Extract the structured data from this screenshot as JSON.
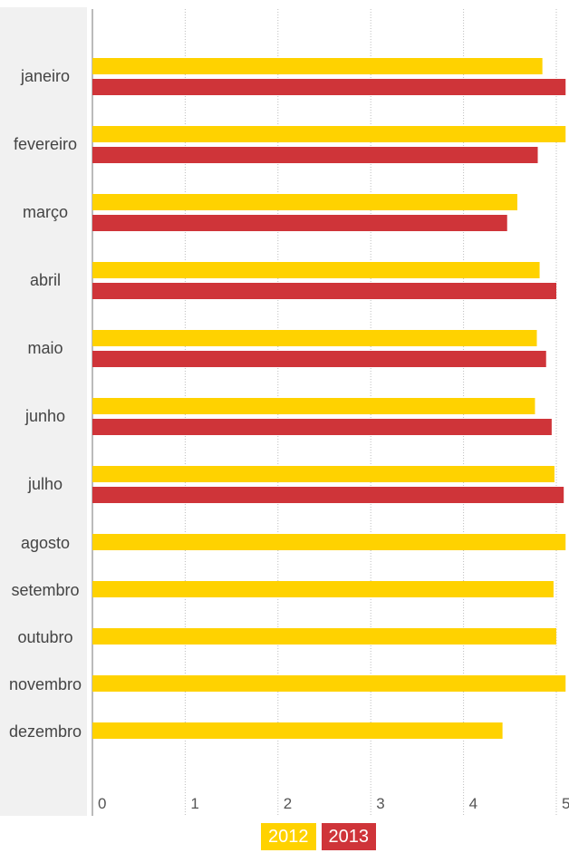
{
  "chart_data": {
    "type": "bar",
    "orientation": "horizontal",
    "categories": [
      "janeiro",
      "fevereiro",
      "março",
      "abril",
      "maio",
      "junho",
      "julho",
      "agosto",
      "setembro",
      "outubro",
      "novembro",
      "dezembro"
    ],
    "series": [
      {
        "name": "2012",
        "color": "#FFD200",
        "values": [
          4.85,
          5.1,
          4.58,
          4.82,
          4.79,
          4.77,
          4.98,
          5.1,
          4.97,
          5.0,
          5.1,
          4.42
        ]
      },
      {
        "name": "2013",
        "color": "#CF3439",
        "values": [
          5.1,
          4.8,
          4.47,
          5.0,
          4.89,
          4.95,
          5.08,
          null,
          null,
          null,
          null,
          null
        ]
      }
    ],
    "xticks": [
      "0",
      "1",
      "2",
      "3",
      "4",
      "5"
    ],
    "xlim": [
      0,
      5
    ],
    "grid": true,
    "legend_position": "bottom-right"
  }
}
